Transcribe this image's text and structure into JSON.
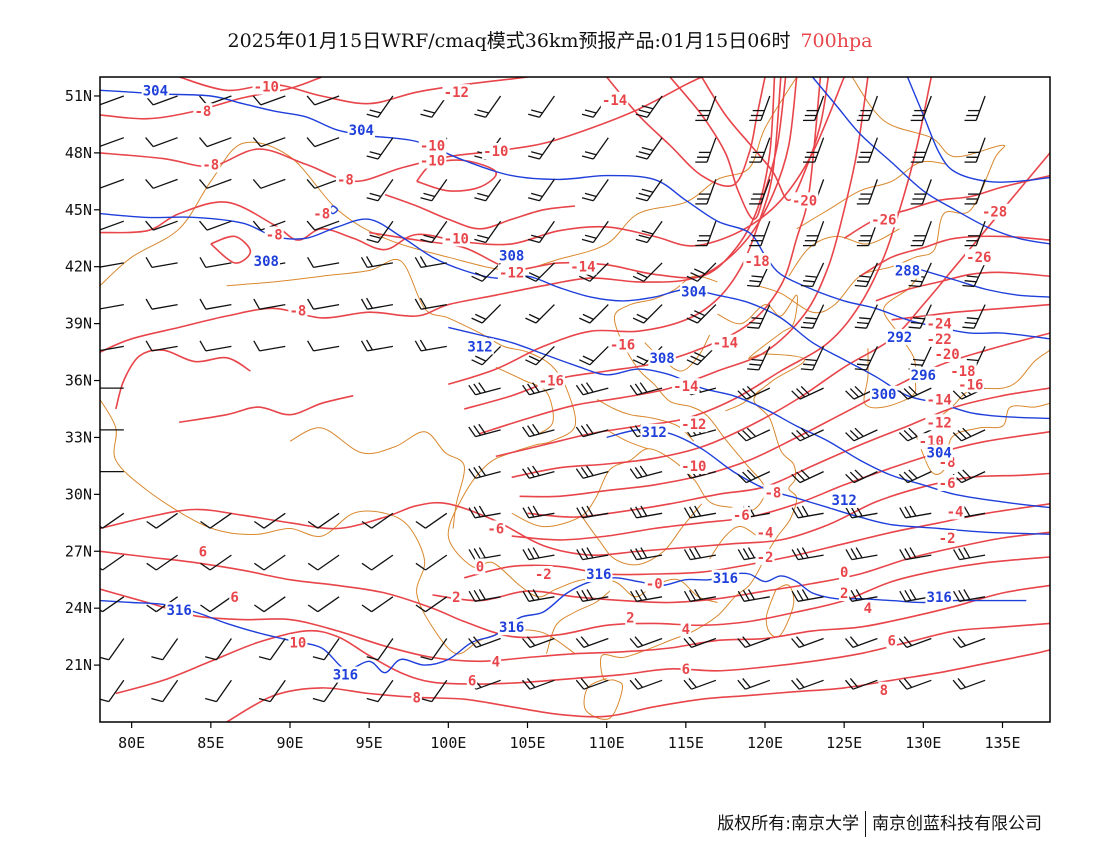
{
  "title": {
    "main": "2025年01月15日WRF/cmaq模式36km预报产品:01月15日06时",
    "level": "700hpa"
  },
  "map": {
    "lon_labels": [
      "80E",
      "85E",
      "90E",
      "95E",
      "100E",
      "105E",
      "110E",
      "115E",
      "120E",
      "125E",
      "130E",
      "135E"
    ],
    "lat_labels": [
      "51N",
      "48N",
      "45N",
      "42N",
      "39N",
      "36N",
      "33N",
      "30N",
      "27N",
      "24N",
      "21N"
    ],
    "extent": {
      "lon_min": 78,
      "lon_max": 138,
      "lat_min": 18,
      "lat_max": 52
    },
    "colors": {
      "temperature": "#e8454a",
      "height": "#1f3fdb",
      "border": "#d9882e",
      "wind": "#111111"
    },
    "height_labels": [
      {
        "text": "304",
        "lon": 81.5,
        "lat": 51.3
      },
      {
        "text": "304",
        "lon": 94.5,
        "lat": 49.2
      },
      {
        "text": "308",
        "lon": 88.5,
        "lat": 42.3
      },
      {
        "text": "308",
        "lon": 104.0,
        "lat": 42.6
      },
      {
        "text": "304",
        "lon": 115.5,
        "lat": 40.7
      },
      {
        "text": "312",
        "lon": 102.0,
        "lat": 37.8
      },
      {
        "text": "308",
        "lon": 113.5,
        "lat": 37.2
      },
      {
        "text": "312",
        "lon": 113.0,
        "lat": 33.3
      },
      {
        "text": "288",
        "lon": 129.0,
        "lat": 41.8
      },
      {
        "text": "292",
        "lon": 128.5,
        "lat": 38.3
      },
      {
        "text": "296",
        "lon": 130.0,
        "lat": 36.3
      },
      {
        "text": "300",
        "lon": 127.5,
        "lat": 35.3
      },
      {
        "text": "304",
        "lon": 131.0,
        "lat": 32.2
      },
      {
        "text": "312",
        "lon": 125.0,
        "lat": 29.7
      },
      {
        "text": "316",
        "lon": 109.5,
        "lat": 25.8
      },
      {
        "text": "316",
        "lon": 117.5,
        "lat": 25.6
      },
      {
        "text": "316",
        "lon": 131.0,
        "lat": 24.6
      },
      {
        "text": "316",
        "lon": 83.0,
        "lat": 23.9
      },
      {
        "text": "316",
        "lon": 104.0,
        "lat": 23.0
      },
      {
        "text": "316",
        "lon": 93.5,
        "lat": 20.5
      }
    ],
    "temp_labels": [
      {
        "text": "-10",
        "lon": 88.5,
        "lat": 51.5
      },
      {
        "text": "-8",
        "lon": 84.5,
        "lat": 50.2
      },
      {
        "text": "-12",
        "lon": 100.5,
        "lat": 51.2
      },
      {
        "text": "-14",
        "lon": 110.5,
        "lat": 50.8
      },
      {
        "text": "-8",
        "lon": 85.0,
        "lat": 47.4
      },
      {
        "text": "-8",
        "lon": 93.5,
        "lat": 46.6
      },
      {
        "text": "-10",
        "lon": 99.0,
        "lat": 48.4
      },
      {
        "text": "-10",
        "lon": 99.0,
        "lat": 47.6
      },
      {
        "text": "-10",
        "lon": 103.0,
        "lat": 48.1
      },
      {
        "text": "-8",
        "lon": 92.0,
        "lat": 44.8
      },
      {
        "text": "-8",
        "lon": 89.0,
        "lat": 43.7
      },
      {
        "text": "-10",
        "lon": 100.5,
        "lat": 43.5
      },
      {
        "text": "-12",
        "lon": 104.0,
        "lat": 41.7
      },
      {
        "text": "-14",
        "lon": 108.5,
        "lat": 42.0
      },
      {
        "text": "-8",
        "lon": 90.5,
        "lat": 39.7
      },
      {
        "text": "-16",
        "lon": 111.0,
        "lat": 37.9
      },
      {
        "text": "-14",
        "lon": 117.5,
        "lat": 38.0
      },
      {
        "text": "-16",
        "lon": 106.5,
        "lat": 36.0
      },
      {
        "text": "-14",
        "lon": 115.0,
        "lat": 35.7
      },
      {
        "text": "-12",
        "lon": 115.5,
        "lat": 33.7
      },
      {
        "text": "-10",
        "lon": 115.5,
        "lat": 31.5
      },
      {
        "text": "-8",
        "lon": 120.5,
        "lat": 30.1
      },
      {
        "text": "-6",
        "lon": 118.5,
        "lat": 28.9
      },
      {
        "text": "-4",
        "lon": 120.0,
        "lat": 28.0
      },
      {
        "text": "-2",
        "lon": 120.0,
        "lat": 26.7
      },
      {
        "text": "-20",
        "lon": 122.5,
        "lat": 45.5
      },
      {
        "text": "-18",
        "lon": 119.5,
        "lat": 42.3
      },
      {
        "text": "-26",
        "lon": 127.5,
        "lat": 44.5
      },
      {
        "text": "-28",
        "lon": 134.5,
        "lat": 44.9
      },
      {
        "text": "-26",
        "lon": 133.5,
        "lat": 42.5
      },
      {
        "text": "-24",
        "lon": 131.0,
        "lat": 39.0
      },
      {
        "text": "-22",
        "lon": 131.0,
        "lat": 38.2
      },
      {
        "text": "-20",
        "lon": 131.5,
        "lat": 37.4
      },
      {
        "text": "-18",
        "lon": 132.5,
        "lat": 36.5
      },
      {
        "text": "-16",
        "lon": 133.0,
        "lat": 35.8
      },
      {
        "text": "-14",
        "lon": 131.0,
        "lat": 35.0
      },
      {
        "text": "-12",
        "lon": 131.0,
        "lat": 33.8
      },
      {
        "text": "-10",
        "lon": 130.5,
        "lat": 32.8
      },
      {
        "text": "-8",
        "lon": 131.5,
        "lat": 31.7
      },
      {
        "text": "-6",
        "lon": 131.5,
        "lat": 30.6
      },
      {
        "text": "-4",
        "lon": 132.0,
        "lat": 29.1
      },
      {
        "text": "-2",
        "lon": 131.5,
        "lat": 27.7
      },
      {
        "text": "-6",
        "lon": 103.0,
        "lat": 28.2
      },
      {
        "text": "0",
        "lon": 102.0,
        "lat": 26.2
      },
      {
        "text": "-2",
        "lon": 106.0,
        "lat": 25.8
      },
      {
        "text": "-0",
        "lon": 113.0,
        "lat": 25.3
      },
      {
        "text": "0",
        "lon": 125.0,
        "lat": 25.9
      },
      {
        "text": "2",
        "lon": 125.0,
        "lat": 24.8
      },
      {
        "text": "2",
        "lon": 100.5,
        "lat": 24.6
      },
      {
        "text": "2",
        "lon": 111.5,
        "lat": 23.5
      },
      {
        "text": "4",
        "lon": 126.5,
        "lat": 24.0
      },
      {
        "text": "4",
        "lon": 115.0,
        "lat": 22.9
      },
      {
        "text": "4",
        "lon": 103.0,
        "lat": 21.2
      },
      {
        "text": "6",
        "lon": 84.5,
        "lat": 27.0
      },
      {
        "text": "6",
        "lon": 86.5,
        "lat": 24.6
      },
      {
        "text": "6",
        "lon": 128.0,
        "lat": 22.3
      },
      {
        "text": "6",
        "lon": 115.0,
        "lat": 20.8
      },
      {
        "text": "6",
        "lon": 101.5,
        "lat": 20.2
      },
      {
        "text": "10",
        "lon": 90.5,
        "lat": 22.2
      },
      {
        "text": "8",
        "lon": 98.0,
        "lat": 19.3
      },
      {
        "text": "8",
        "lon": 127.5,
        "lat": 19.7
      }
    ]
  },
  "footer": {
    "copyright": "版权所有:南京大学",
    "company": "南京创蓝科技有限公司"
  }
}
